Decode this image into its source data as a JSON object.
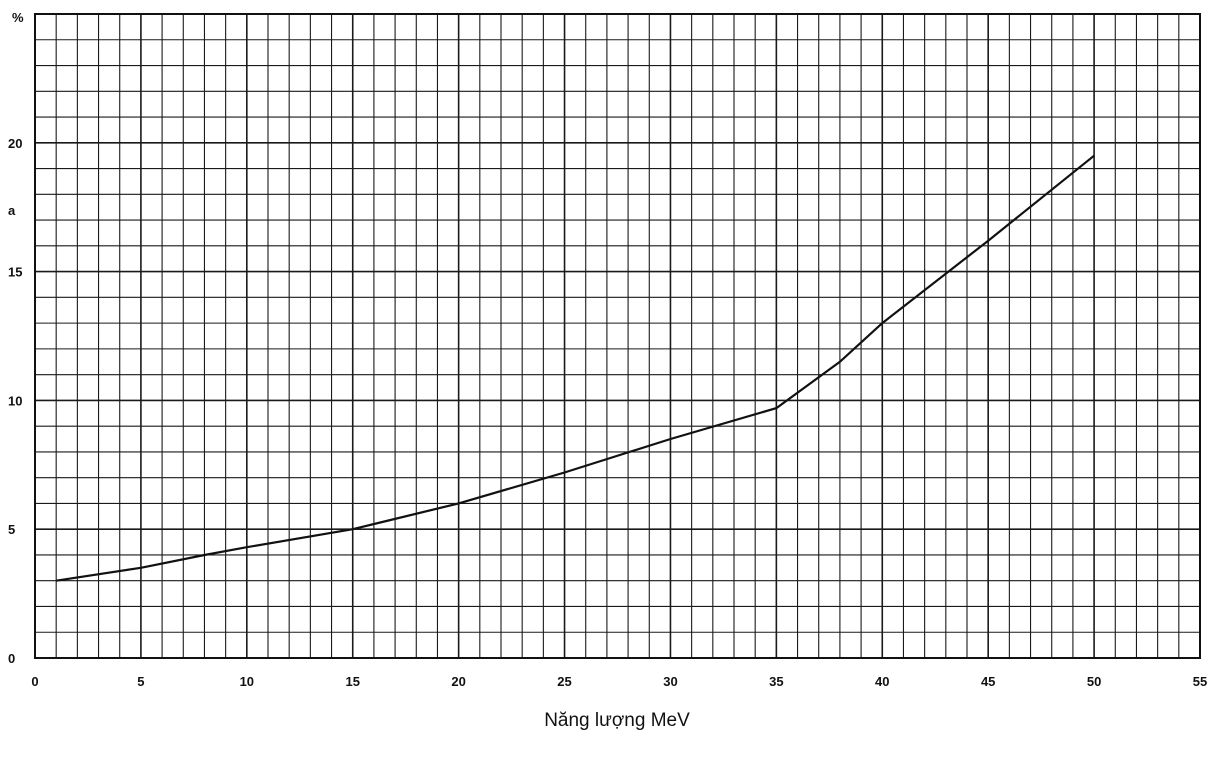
{
  "chart_data": {
    "type": "line",
    "title": "",
    "xlabel": "Năng lượng  MeV",
    "ylabel": "%",
    "y_extra_label": "a",
    "xlim": [
      0,
      55
    ],
    "ylim": [
      0,
      25
    ],
    "x_ticks": [
      "0",
      "5",
      "10",
      "15",
      "20",
      "25",
      "30",
      "35",
      "40",
      "45",
      "50",
      "55"
    ],
    "y_ticks": [
      "0",
      "5",
      "10",
      "15",
      "20"
    ],
    "grid": true,
    "series": [
      {
        "x": [
          1,
          5,
          8,
          10,
          15,
          20,
          25,
          30,
          35,
          38,
          40,
          45,
          50
        ],
        "y": [
          3.0,
          3.5,
          4.0,
          4.3,
          5.0,
          6.0,
          7.2,
          8.5,
          9.7,
          11.5,
          13.0,
          16.2,
          19.5
        ]
      }
    ],
    "colors": {
      "line": "#111111",
      "grid": "#1a1a1a"
    }
  }
}
